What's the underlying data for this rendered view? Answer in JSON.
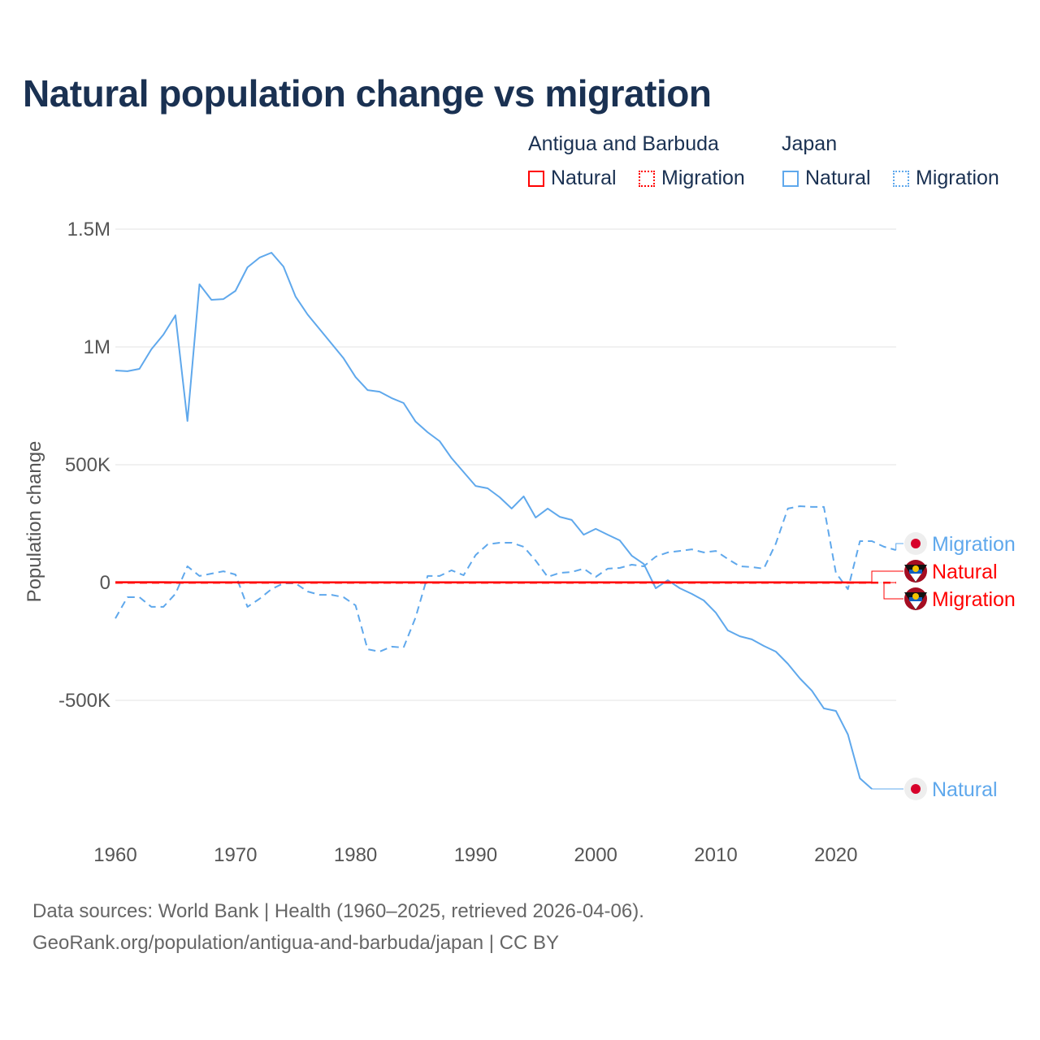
{
  "chart_data": {
    "type": "line",
    "title": "Natural population change vs migration",
    "xlabel": "",
    "ylabel": "Population change",
    "xlim": [
      1960,
      2025
    ],
    "ylim": [
      -1000000,
      1500000
    ],
    "x_ticks": [
      "1960",
      "1970",
      "1980",
      "1990",
      "2000",
      "2010",
      "2020"
    ],
    "y_ticks": [
      {
        "v": 1500000,
        "label": "1.5M"
      },
      {
        "v": 1000000,
        "label": "1M"
      },
      {
        "v": 500000,
        "label": "500K"
      },
      {
        "v": 0,
        "label": "0"
      },
      {
        "v": -500000,
        "label": "-500K"
      }
    ],
    "grid": true,
    "legend": {
      "placement": "top-right",
      "groups": [
        {
          "name": "Antigua and Barbuda",
          "items": [
            "Natural",
            "Migration"
          ]
        },
        {
          "name": "Japan",
          "items": [
            "Natural",
            "Migration"
          ]
        }
      ]
    },
    "series": [
      {
        "name": "Japan Natural",
        "country": "Japan",
        "kind": "Natural",
        "color": "#5fa8ec",
        "dash": false,
        "start": 1960,
        "values": [
          900000,
          897000,
          907000,
          990000,
          1052000,
          1134000,
          686000,
          1266000,
          1200000,
          1203000,
          1238000,
          1338000,
          1379000,
          1400000,
          1341000,
          1214000,
          1138000,
          1076000,
          1014000,
          952000,
          872000,
          817000,
          810000,
          783000,
          762000,
          683000,
          638000,
          600000,
          528000,
          469000,
          410000,
          400000,
          362000,
          314000,
          366000,
          276000,
          314000,
          279000,
          266000,
          203000,
          228000,
          203000,
          179000,
          114000,
          79000,
          -24000,
          10000,
          -24000,
          -48000,
          -76000,
          -128000,
          -203000,
          -228000,
          -241000,
          -269000,
          -293000,
          -345000,
          -407000,
          -459000,
          -534000,
          -545000,
          -645000,
          -831000,
          -876000
        ]
      },
      {
        "name": "Japan Migration",
        "country": "Japan",
        "kind": "Migration",
        "color": "#5fa8ec",
        "dash": true,
        "start": 1960,
        "values": [
          -152000,
          -62000,
          -62000,
          -103000,
          -103000,
          -48000,
          69000,
          28000,
          38000,
          48000,
          34000,
          -103000,
          -69000,
          -28000,
          -3000,
          -3000,
          -38000,
          -52000,
          -52000,
          -62000,
          -97000,
          -283000,
          -293000,
          -272000,
          -276000,
          -148000,
          28000,
          28000,
          52000,
          31000,
          117000,
          162000,
          169000,
          169000,
          152000,
          93000,
          24000,
          41000,
          45000,
          59000,
          24000,
          59000,
          62000,
          76000,
          69000,
          110000,
          128000,
          134000,
          141000,
          128000,
          134000,
          100000,
          69000,
          66000,
          59000,
          166000,
          314000,
          324000,
          321000,
          321000,
          41000,
          -28000,
          176000,
          176000,
          152000,
          138000
        ]
      },
      {
        "name": "Antigua and Barbuda Natural",
        "country": "Antigua and Barbuda",
        "kind": "Natural",
        "color": "#ff0000",
        "dash": false,
        "start": 1960,
        "values": [
          1300,
          1300,
          1300,
          1300,
          1300,
          1200,
          1200,
          1200,
          1100,
          1100,
          1100,
          1100,
          1000,
          1000,
          1000,
          1000,
          1000,
          1000,
          1000,
          1000,
          1000,
          1000,
          1000,
          1000,
          1000,
          1000,
          1000,
          1000,
          1000,
          1000,
          1000,
          1000,
          1000,
          1000,
          1000,
          1000,
          1000,
          1000,
          1000,
          1000,
          1000,
          1000,
          1000,
          1000,
          1000,
          1000,
          1000,
          1000,
          1000,
          1000,
          1000,
          900,
          900,
          900,
          800,
          800,
          800,
          700,
          700,
          700,
          600,
          500,
          500,
          500
        ]
      },
      {
        "name": "Antigua and Barbuda Migration",
        "country": "Antigua and Barbuda",
        "kind": "Migration",
        "color": "#ff0000",
        "dash": true,
        "start": 1960,
        "values": [
          -500,
          -500,
          -500,
          -500,
          -500,
          -500,
          -500,
          -500,
          -500,
          -500,
          -500,
          -500,
          -500,
          -500,
          -500,
          -500,
          -500,
          -500,
          -500,
          -500,
          -500,
          -500,
          -500,
          -500,
          -500,
          -500,
          -500,
          -500,
          -500,
          -500,
          -500,
          -500,
          -300,
          -300,
          -300,
          -300,
          -300,
          -300,
          -300,
          -300,
          -300,
          -300,
          -300,
          -200,
          -200,
          -200,
          -200,
          -200,
          -200,
          -200,
          -200,
          -200,
          -200,
          -200,
          -200,
          -200,
          -200,
          -200,
          -200,
          -200,
          -200,
          -200,
          -200,
          -200,
          -200,
          -200
        ]
      }
    ],
    "end_labels": [
      {
        "series": "Japan Migration",
        "text": "Migration",
        "flag": "japan-flag"
      },
      {
        "series": "Antigua and Barbuda Natural",
        "text": "Natural",
        "flag": "antigua-flag"
      },
      {
        "series": "Antigua and Barbuda Migration",
        "text": "Migration",
        "flag": "antigua-flag"
      },
      {
        "series": "Japan Natural",
        "text": "Natural",
        "flag": "japan-flag"
      }
    ]
  },
  "colors": {
    "antigua": "#ff0000",
    "japan": "#5fa8ec",
    "title": "#1a3152"
  },
  "footer": {
    "line1": "Data sources: World Bank | Health (1960–2025, retrieved 2026-04-06).",
    "line2": "GeoRank.org/population/antigua-and-barbuda/japan | CC BY"
  }
}
